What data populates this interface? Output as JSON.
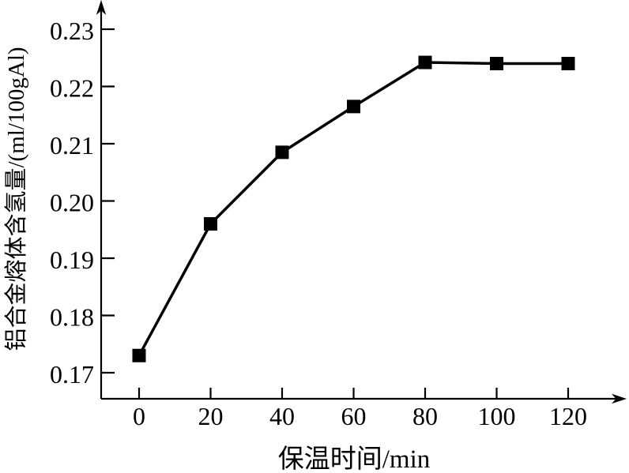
{
  "page": {
    "background": "#ffffff",
    "ink_color": "#000000"
  },
  "chart_data": {
    "type": "line",
    "title": "",
    "xlabel": "保温时间/min",
    "ylabel": "铝合金熔体含氢量/(ml/100gAl)",
    "x": [
      0,
      20,
      40,
      60,
      80,
      100,
      120
    ],
    "series": [
      {
        "marker": "filled-square",
        "color": "#000000",
        "line_width": 3.5,
        "values": [
          0.173,
          0.196,
          0.2085,
          0.2165,
          0.2242,
          0.224,
          0.224
        ]
      }
    ],
    "x_ticks": [
      0,
      20,
      40,
      60,
      80,
      100,
      120
    ],
    "x_tick_labels": [
      "0",
      "20",
      "40",
      "60",
      "80",
      "100",
      "120"
    ],
    "y_ticks": [
      0.17,
      0.18,
      0.19,
      0.2,
      0.21,
      0.22,
      0.23
    ],
    "y_tick_labels": [
      "0.17",
      "0.18",
      "0.19",
      "0.20",
      "0.21",
      "0.22",
      "0.23"
    ],
    "xlim": [
      -10.6,
      136.4
    ],
    "ylim": [
      0.1654,
      0.2348
    ],
    "grid": false,
    "legend": "none",
    "axis_arrows": true
  }
}
